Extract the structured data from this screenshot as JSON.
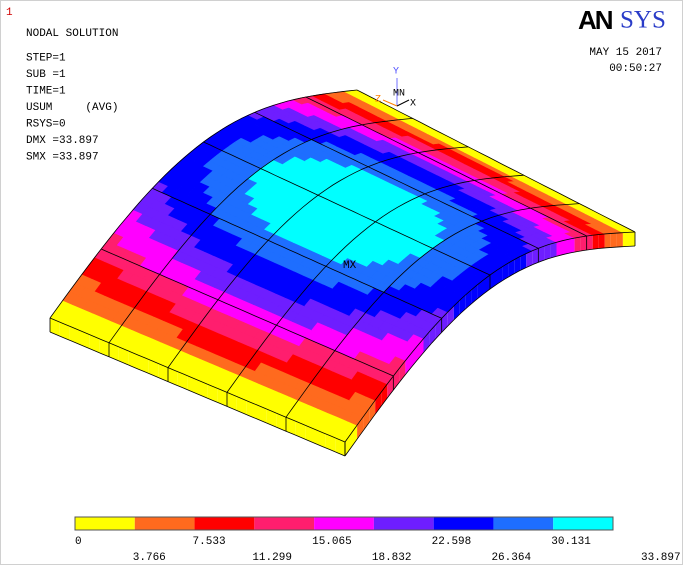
{
  "window_number": "1",
  "info": [
    "NODAL SOLUTION",
    "STEP=1",
    "SUB =1",
    "TIME=1",
    "USUM     (AVG)",
    "RSYS=0",
    "DMX =33.897",
    "SMX =33.897"
  ],
  "logo": {
    "bold": "AN",
    "serif": "SYS"
  },
  "date": "MAY 15 2017",
  "time": "00:50:27",
  "triad": {
    "y": "Y",
    "z": "Z",
    "x": "X",
    "min": "MN"
  },
  "max_label": "MX",
  "legend": {
    "values": [
      0,
      3.766,
      7.533,
      11.299,
      15.065,
      18.832,
      22.598,
      26.364,
      30.131,
      33.897
    ],
    "colors": [
      "#ffff00",
      "#ff6a1e",
      "#ff0000",
      "#ff1e6e",
      "#ff00ff",
      "#6e1eff",
      "#0000ff",
      "#1e6eff",
      "#00ffff"
    ]
  }
}
